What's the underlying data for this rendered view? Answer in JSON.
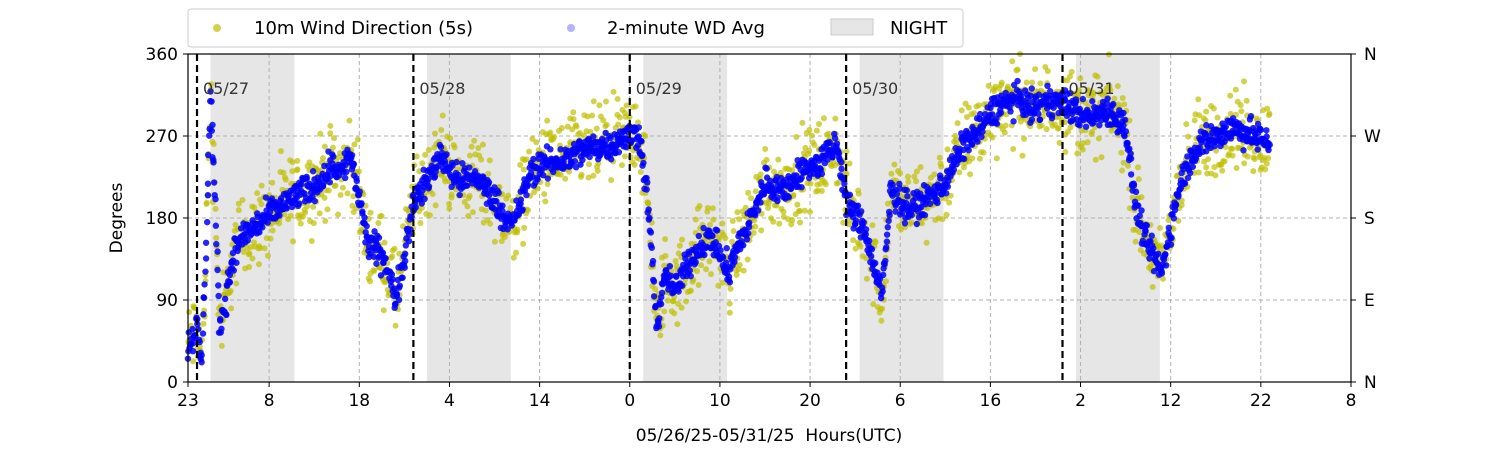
{
  "chart_data": {
    "type": "scatter",
    "xlabel": "05/26/25-05/31/25  Hours(UTC)",
    "ylabel": "Degrees",
    "x_unit": "hours since 05/26/25 23:00 UTC",
    "xlim": [
      0,
      129
    ],
    "ylim": [
      0,
      360
    ],
    "x_ticks": [
      {
        "x": 0,
        "label": "23"
      },
      {
        "x": 9,
        "label": "8"
      },
      {
        "x": 19,
        "label": "18"
      },
      {
        "x": 29,
        "label": "4"
      },
      {
        "x": 39,
        "label": "14"
      },
      {
        "x": 49,
        "label": "0"
      },
      {
        "x": 59,
        "label": "10"
      },
      {
        "x": 69,
        "label": "20"
      },
      {
        "x": 79,
        "label": "6"
      },
      {
        "x": 89,
        "label": "16"
      },
      {
        "x": 99,
        "label": "2"
      },
      {
        "x": 109,
        "label": "12"
      },
      {
        "x": 119,
        "label": "22"
      },
      {
        "x": 129,
        "label": "8"
      }
    ],
    "y_ticks": [
      0,
      90,
      180,
      270,
      360
    ],
    "right_ticks": [
      {
        "y": 0,
        "label": "N"
      },
      {
        "y": 90,
        "label": "E"
      },
      {
        "y": 180,
        "label": "S"
      },
      {
        "y": 270,
        "label": "W"
      },
      {
        "y": 360,
        "label": "N"
      }
    ],
    "grid": true,
    "legend_placement": "top",
    "day_markers": [
      {
        "x": 1,
        "label": "05/27"
      },
      {
        "x": 25,
        "label": "05/28"
      },
      {
        "x": 49,
        "label": "05/29"
      },
      {
        "x": 73,
        "label": "05/30"
      },
      {
        "x": 97,
        "label": "05/31"
      }
    ],
    "night_bands": [
      [
        2.5,
        11.8
      ],
      [
        26.5,
        35.8
      ],
      [
        50.5,
        59.8
      ],
      [
        74.5,
        83.8
      ],
      [
        98.5,
        107.8
      ]
    ],
    "series": [
      {
        "name": "10m Wind Direction (5s)",
        "color": "#bfbf00",
        "spread": 22,
        "x": [
          0,
          1,
          1.5,
          2,
          2.5,
          3,
          3.5,
          4,
          5,
          6,
          8,
          10,
          12,
          14,
          15,
          16,
          17,
          18,
          19,
          20,
          21,
          22,
          23,
          24,
          25,
          26,
          27,
          28,
          30,
          32,
          34,
          36,
          38,
          40,
          42,
          44,
          46,
          48,
          49,
          50,
          51,
          52,
          53,
          54,
          56,
          58,
          60,
          61,
          62,
          63,
          64,
          66,
          68,
          70,
          71,
          72,
          73,
          74,
          75,
          76,
          77,
          78,
          80,
          82,
          84,
          86,
          88,
          90,
          92,
          94,
          96,
          98,
          100,
          102,
          103,
          104,
          105,
          106,
          107,
          108,
          110,
          112,
          114,
          116,
          118,
          120
        ],
        "values": [
          40,
          60,
          20,
          150,
          320,
          200,
          60,
          80,
          140,
          160,
          175,
          190,
          205,
          215,
          225,
          240,
          230,
          250,
          200,
          150,
          145,
          130,
          90,
          140,
          200,
          210,
          230,
          250,
          220,
          225,
          200,
          170,
          230,
          240,
          245,
          255,
          260,
          265,
          270,
          275,
          200,
          60,
          120,
          100,
          140,
          160,
          120,
          150,
          170,
          190,
          220,
          210,
          230,
          240,
          250,
          260,
          200,
          180,
          170,
          130,
          95,
          210,
          190,
          200,
          220,
          260,
          280,
          305,
          310,
          300,
          310,
          300,
          290,
          300,
          290,
          280,
          200,
          160,
          140,
          120,
          220,
          260,
          270,
          280,
          270,
          265
        ]
      },
      {
        "name": "2-minute WD Avg",
        "color": "#0000ff",
        "spread": 8,
        "x": [
          0,
          1,
          1.5,
          2,
          2.5,
          3,
          3.5,
          4,
          5,
          6,
          8,
          10,
          12,
          14,
          15,
          16,
          17,
          18,
          19,
          20,
          21,
          22,
          23,
          24,
          25,
          26,
          27,
          28,
          30,
          32,
          34,
          36,
          38,
          40,
          42,
          44,
          46,
          48,
          49,
          50,
          51,
          52,
          53,
          54,
          56,
          58,
          60,
          61,
          62,
          63,
          64,
          66,
          68,
          70,
          71,
          72,
          73,
          74,
          75,
          76,
          77,
          78,
          80,
          82,
          84,
          86,
          88,
          90,
          92,
          94,
          96,
          98,
          100,
          102,
          103,
          104,
          105,
          106,
          107,
          108,
          110,
          112,
          114,
          116,
          118,
          120
        ],
        "values": [
          40,
          60,
          20,
          150,
          320,
          200,
          60,
          80,
          140,
          160,
          175,
          190,
          205,
          215,
          225,
          240,
          230,
          250,
          200,
          150,
          145,
          130,
          90,
          140,
          200,
          210,
          230,
          250,
          220,
          225,
          200,
          170,
          230,
          240,
          245,
          255,
          260,
          265,
          270,
          275,
          200,
          60,
          120,
          100,
          140,
          160,
          120,
          150,
          170,
          190,
          220,
          210,
          230,
          240,
          250,
          260,
          200,
          180,
          170,
          130,
          95,
          210,
          190,
          200,
          220,
          260,
          280,
          305,
          310,
          300,
          310,
          300,
          290,
          300,
          290,
          280,
          200,
          160,
          140,
          120,
          220,
          260,
          270,
          280,
          270,
          265
        ]
      }
    ],
    "night_label": "NIGHT",
    "night_color": "#e6e6e6"
  }
}
